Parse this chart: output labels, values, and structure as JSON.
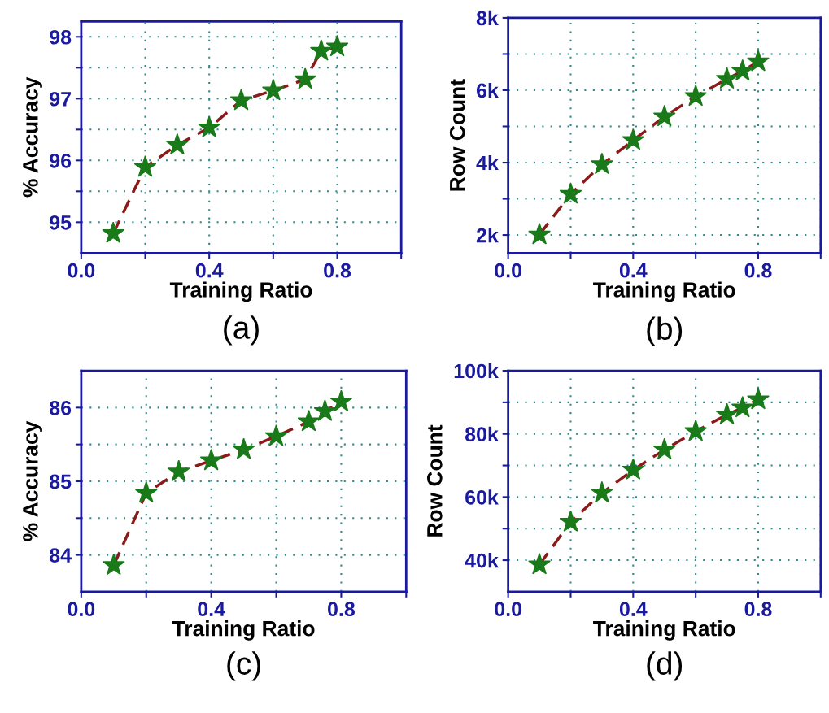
{
  "chart_data": [
    {
      "type": "line",
      "xlabel": "Training Ratio",
      "ylabel": "% Accuracy",
      "annotations": [
        "(a)"
      ],
      "x": [
        0.1,
        0.2,
        0.3,
        0.4,
        0.5,
        0.6,
        0.7,
        0.75,
        0.8
      ],
      "series": [
        {
          "color": "#1a7a1a",
          "values": [
            94.82,
            95.89,
            96.25,
            96.53,
            96.97,
            97.13,
            97.31,
            97.77,
            97.84
          ]
        }
      ],
      "xlim": [
        0,
        1
      ],
      "xticks": [
        {
          "value": 0,
          "label": "0.0"
        },
        {
          "value": 0.2,
          "label": null
        },
        {
          "value": 0.4,
          "label": "0.4"
        },
        {
          "value": 0.6,
          "label": null
        },
        {
          "value": 0.8,
          "label": "0.8"
        },
        {
          "value": 1.0,
          "label": null
        }
      ],
      "ylim": [
        94.5,
        98.25
      ],
      "yticks": [
        95,
        {
          "value": 95.5,
          "label": null
        },
        96,
        {
          "value": 96.5,
          "label": null
        },
        97,
        {
          "value": 97.5,
          "label": null
        },
        98
      ],
      "grid": true,
      "marker": "star",
      "line_style": "dashed"
    },
    {
      "type": "line",
      "xlabel": "Training Ratio",
      "ylabel": "Row Count",
      "annotations": [
        "(b)"
      ],
      "x": [
        0.1,
        0.2,
        0.3,
        0.4,
        0.5,
        0.6,
        0.7,
        0.75,
        0.8
      ],
      "series": [
        {
          "color": "#1a7a1a",
          "values": [
            2010,
            3130,
            3950,
            4620,
            5270,
            5830,
            6310,
            6530,
            6790
          ]
        }
      ],
      "xlim": [
        0,
        1
      ],
      "xticks": [
        {
          "value": 0,
          "label": "0.0"
        },
        {
          "value": 0.2,
          "label": null
        },
        {
          "value": 0.4,
          "label": "0.4"
        },
        {
          "value": 0.6,
          "label": null
        },
        {
          "value": 0.8,
          "label": "0.8"
        },
        {
          "value": 1.0,
          "label": null
        }
      ],
      "ylim": [
        1500,
        8000
      ],
      "yticks": [
        {
          "value": 2000,
          "label": "2k"
        },
        {
          "value": 3000,
          "label": null
        },
        {
          "value": 4000,
          "label": "4k"
        },
        {
          "value": 5000,
          "label": null
        },
        {
          "value": 6000,
          "label": "6k"
        },
        {
          "value": 7000,
          "label": null
        },
        {
          "value": 8000,
          "label": "8k"
        }
      ],
      "grid": true,
      "marker": "star",
      "line_style": "dashed"
    },
    {
      "type": "line",
      "xlabel": "Training Ratio",
      "ylabel": "% Accuracy",
      "annotations": [
        "(c)"
      ],
      "x": [
        0.1,
        0.2,
        0.3,
        0.4,
        0.5,
        0.6,
        0.7,
        0.75,
        0.8
      ],
      "series": [
        {
          "color": "#1a7a1a",
          "values": [
            83.86,
            84.84,
            85.13,
            85.28,
            85.43,
            85.61,
            85.81,
            85.95,
            86.08
          ]
        }
      ],
      "xlim": [
        0,
        1
      ],
      "xticks": [
        {
          "value": 0,
          "label": "0.0"
        },
        {
          "value": 0.2,
          "label": null
        },
        {
          "value": 0.4,
          "label": "0.4"
        },
        {
          "value": 0.6,
          "label": null
        },
        {
          "value": 0.8,
          "label": "0.8"
        },
        {
          "value": 1.0,
          "label": null
        }
      ],
      "ylim": [
        83.5,
        86.5
      ],
      "yticks": [
        84,
        {
          "value": 84.5,
          "label": null
        },
        85,
        {
          "value": 85.5,
          "label": null
        },
        86
      ],
      "grid": true,
      "marker": "star",
      "line_style": "dashed"
    },
    {
      "type": "line",
      "xlabel": "Training Ratio",
      "ylabel": "Row Count",
      "annotations": [
        "(d)"
      ],
      "x": [
        0.1,
        0.2,
        0.3,
        0.4,
        0.5,
        0.6,
        0.7,
        0.75,
        0.8
      ],
      "series": [
        {
          "color": "#1a7a1a",
          "values": [
            38600,
            52100,
            61300,
            68600,
            75000,
            80800,
            86100,
            88300,
            90900
          ]
        }
      ],
      "xlim": [
        0,
        1
      ],
      "xticks": [
        {
          "value": 0,
          "label": "0.0"
        },
        {
          "value": 0.2,
          "label": null
        },
        {
          "value": 0.4,
          "label": "0.4"
        },
        {
          "value": 0.6,
          "label": null
        },
        {
          "value": 0.8,
          "label": "0.8"
        },
        {
          "value": 1.0,
          "label": null
        }
      ],
      "ylim": [
        30000,
        100000
      ],
      "yticks": [
        {
          "value": 40000,
          "label": "40k"
        },
        {
          "value": 50000,
          "label": null
        },
        {
          "value": 60000,
          "label": "60k"
        },
        {
          "value": 70000,
          "label": null
        },
        {
          "value": 80000,
          "label": "80k"
        },
        {
          "value": 90000,
          "label": null
        },
        {
          "value": 100000,
          "label": "100k"
        }
      ],
      "grid": true,
      "marker": "star",
      "line_style": "dashed"
    }
  ]
}
